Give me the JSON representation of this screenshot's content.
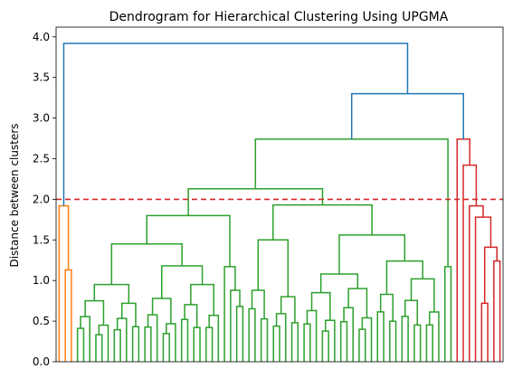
{
  "chart_data": {
    "type": "dendrogram",
    "title": "Dendrogram for Hierarchical Clustering Using UPGMA",
    "xlabel": "",
    "ylabel": "Distance between clusters",
    "ylim": [
      0,
      4.12
    ],
    "yticks": [
      "0.0",
      "0.5",
      "1.0",
      "1.5",
      "2.0",
      "2.5",
      "3.0",
      "3.5",
      "4.0"
    ],
    "grid": false,
    "threshold": {
      "value": 2.0,
      "color": "#d62728",
      "style": "dashed"
    },
    "colors": {
      "above_threshold": "#1f77b4",
      "cluster_1": "#ff7f0e",
      "cluster_2": "#2ca02c",
      "cluster_3": "#d62728"
    },
    "root_merges": [
      {
        "height": 3.92,
        "note": "root"
      },
      {
        "height": 3.3
      },
      {
        "height": 2.74
      },
      {
        "height": 1.92
      },
      {
        "height": 2.74
      }
    ]
  }
}
